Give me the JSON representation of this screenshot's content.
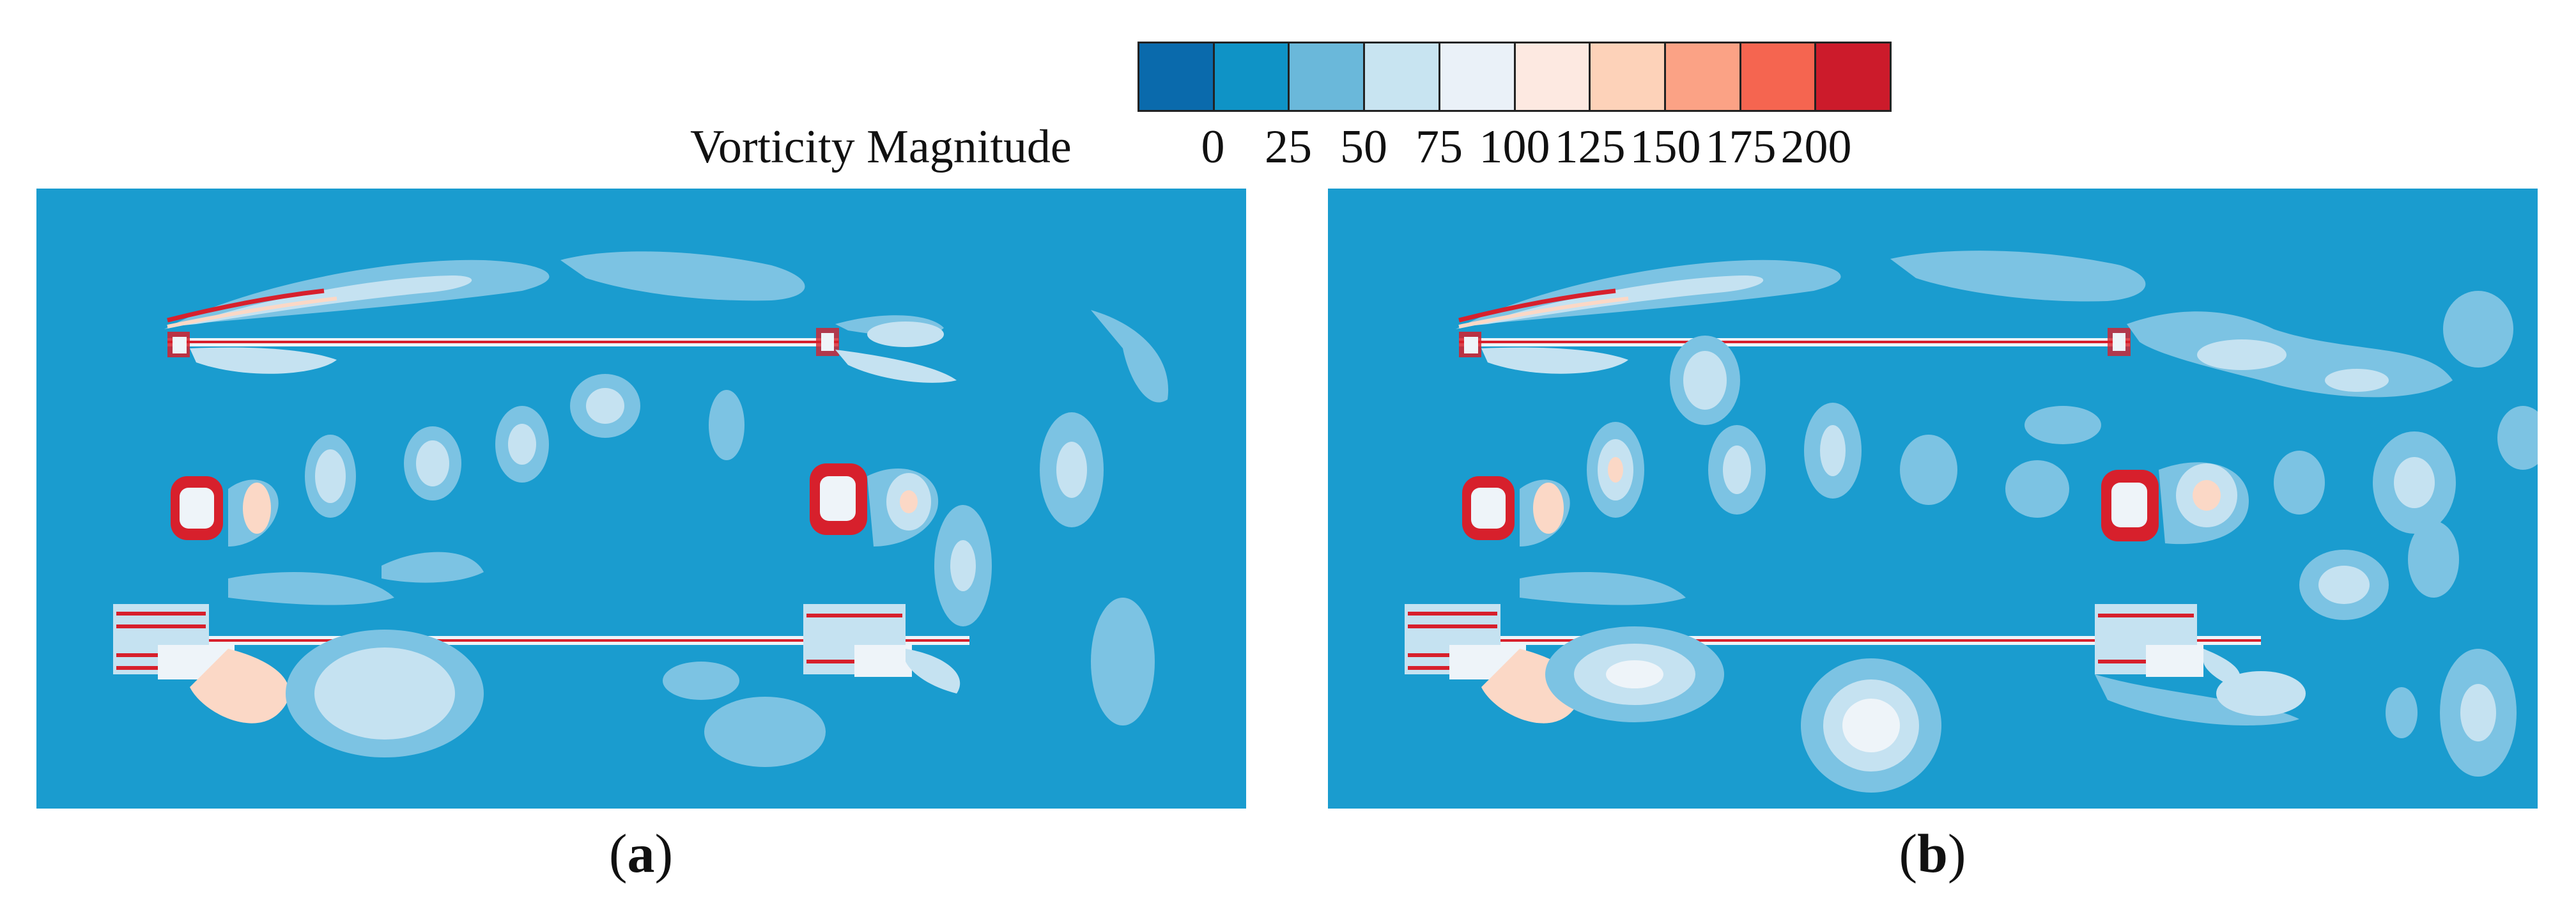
{
  "legend": {
    "title": "Vorticity Magnitude",
    "ticks": [
      "0",
      "25",
      "50",
      "75",
      "100",
      "125",
      "150",
      "175",
      "200"
    ],
    "colors": [
      "#0a6aac",
      "#0f93c6",
      "#6ab8da",
      "#c8e4f1",
      "#eaf1f8",
      "#fde9e1",
      "#fdd2b9",
      "#fba285",
      "#f56550",
      "#cc1b2b"
    ]
  },
  "panels": [
    {
      "letter": "a"
    },
    {
      "letter": "b"
    }
  ],
  "palette": {
    "background": "#1a9ccf",
    "level1": "#7cc3e3",
    "level2": "#c5e2f1",
    "level3": "#eef4f9",
    "peach": "#fbd8c6",
    "red": "#d7202c"
  }
}
